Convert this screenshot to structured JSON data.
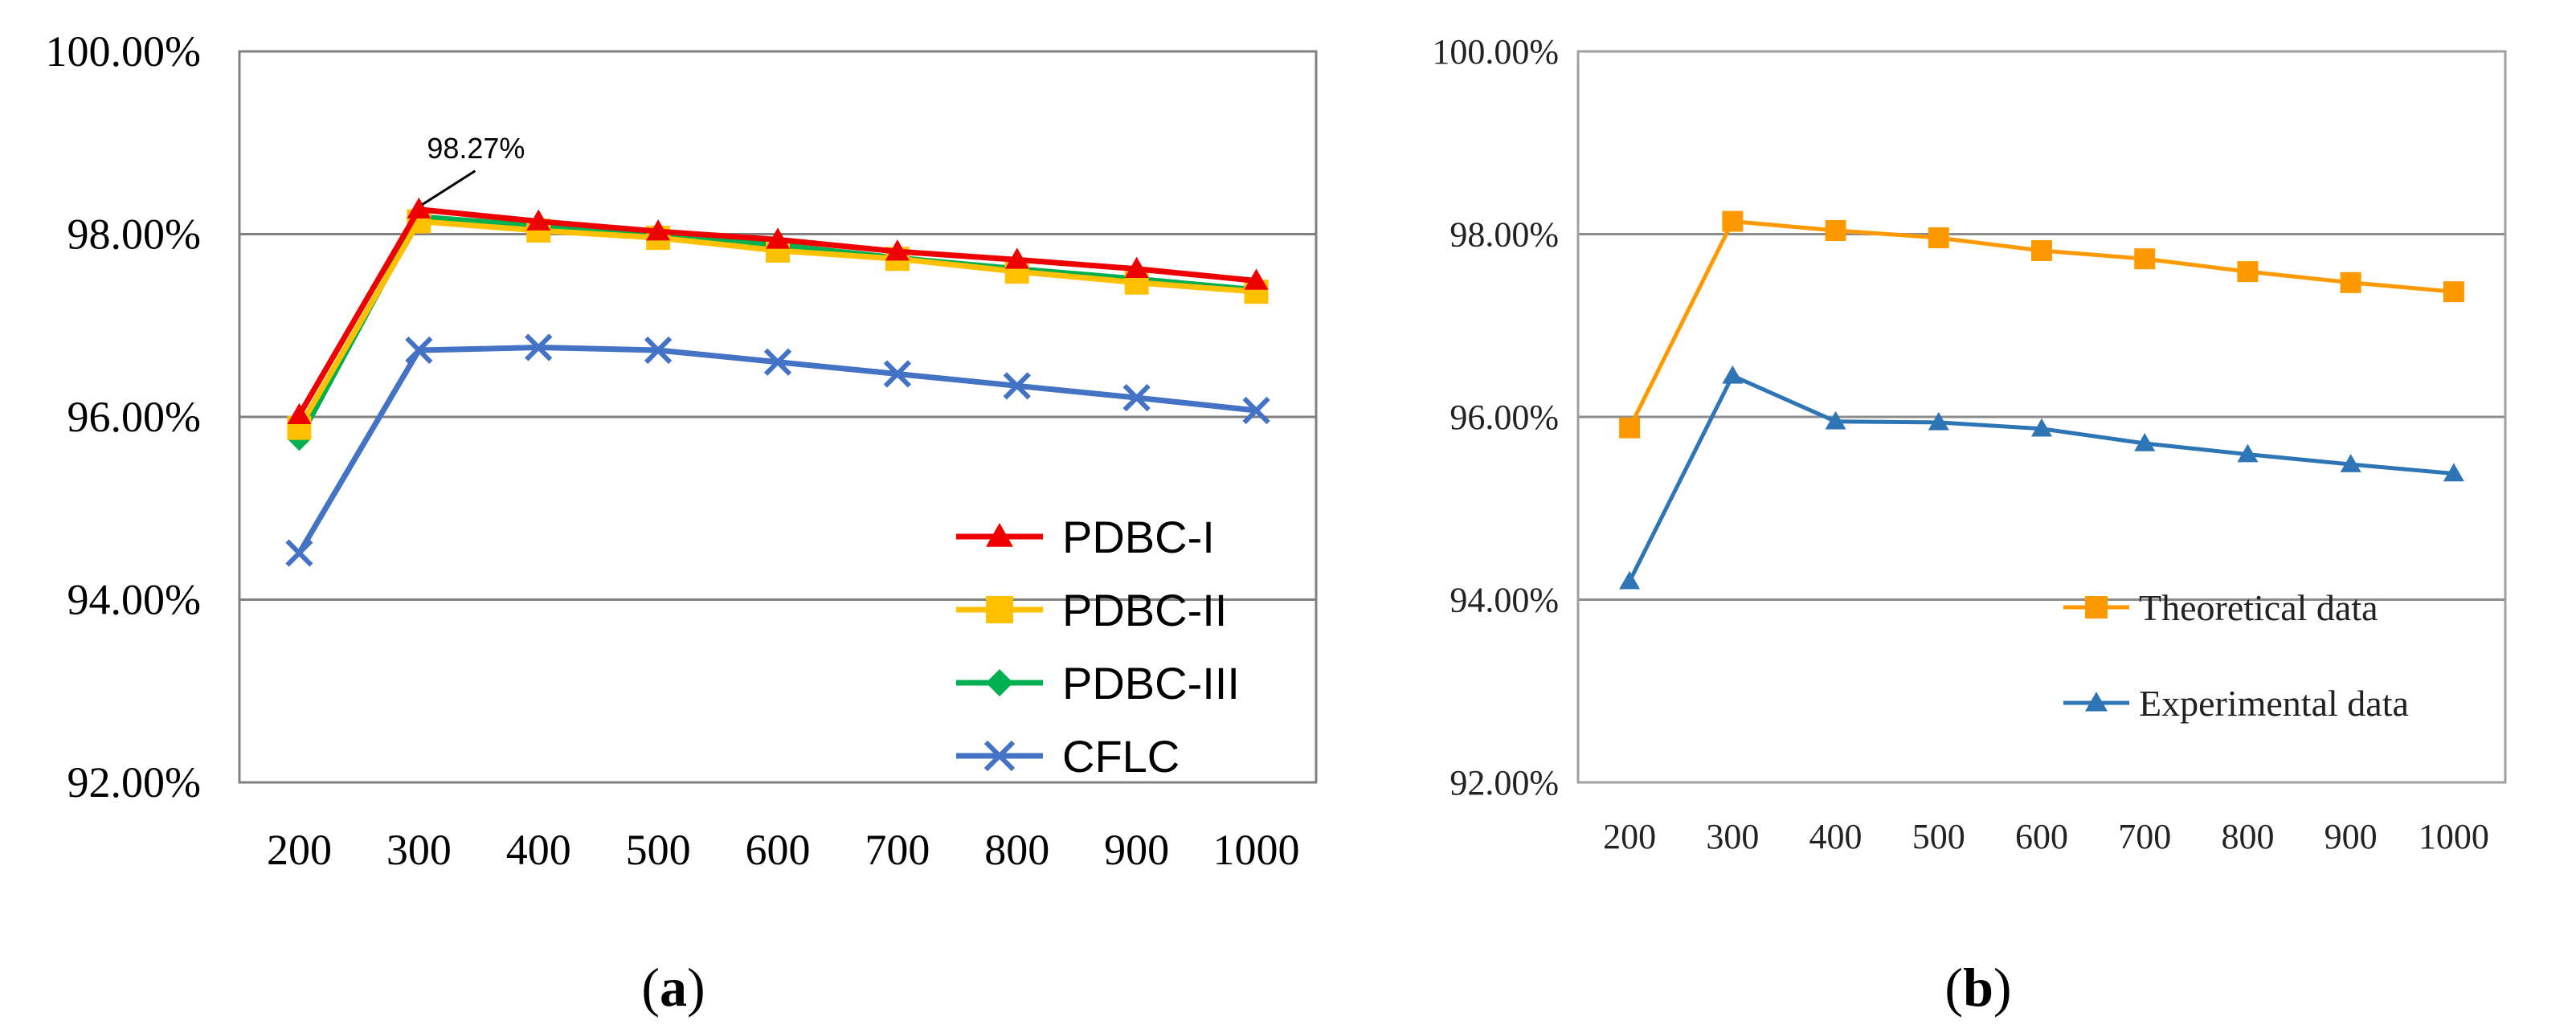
{
  "colors": {
    "red": "#ee0000",
    "yellow": "#ffc000",
    "green": "#00b050",
    "blue": "#4472c4",
    "orange": "#ff9900",
    "steelblue": "#2e75b6",
    "grid": "#808080",
    "frame": "#808080"
  },
  "chart_data": [
    {
      "panel": "(a)",
      "type": "line",
      "categories": [
        "200",
        "300",
        "400",
        "500",
        "600",
        "700",
        "800",
        "900",
        "1000"
      ],
      "y_ticks": [
        "92.00%",
        "94.00%",
        "96.00%",
        "98.00%",
        "100.00%"
      ],
      "ylim": [
        92,
        100
      ],
      "grid": true,
      "legend_position": "bottom-right",
      "annotation": {
        "text": "98.27%",
        "series": "PDBC-I",
        "category": "300"
      },
      "series": [
        {
          "name": "PDBC-I",
          "marker": "triangle",
          "color": "#ee0000",
          "values": [
            96.02,
            98.27,
            98.14,
            98.03,
            97.94,
            97.81,
            97.72,
            97.62,
            97.49
          ]
        },
        {
          "name": "PDBC-II",
          "marker": "square",
          "color": "#ffc000",
          "values": [
            95.88,
            98.14,
            98.04,
            97.96,
            97.82,
            97.73,
            97.59,
            97.47,
            97.37
          ]
        },
        {
          "name": "PDBC-III",
          "marker": "diamond",
          "color": "#00b050",
          "values": [
            95.76,
            98.19,
            98.09,
            98.0,
            97.88,
            97.74,
            97.62,
            97.51,
            97.39
          ]
        },
        {
          "name": "CFLC",
          "marker": "x",
          "color": "#4472c4",
          "values": [
            94.51,
            96.73,
            96.76,
            96.73,
            96.6,
            96.47,
            96.34,
            96.21,
            96.07
          ]
        }
      ]
    },
    {
      "panel": "(b)",
      "type": "line",
      "categories": [
        "200",
        "300",
        "400",
        "500",
        "600",
        "700",
        "800",
        "900",
        "1000"
      ],
      "y_ticks": [
        "92.00%",
        "94.00%",
        "96.00%",
        "98.00%",
        "100.00%"
      ],
      "ylim": [
        92,
        100
      ],
      "grid": true,
      "legend_position": "bottom-right",
      "series": [
        {
          "name": "Theoretical data",
          "marker": "square",
          "color": "#ff9900",
          "values": [
            95.88,
            98.14,
            98.04,
            97.96,
            97.82,
            97.73,
            97.59,
            97.47,
            97.37
          ]
        },
        {
          "name": "Experimental data",
          "marker": "triangle",
          "color": "#2e75b6",
          "values": [
            94.2,
            96.45,
            95.95,
            95.94,
            95.87,
            95.71,
            95.59,
            95.48,
            95.38
          ]
        }
      ]
    }
  ],
  "labels": {
    "a": "a",
    "b": "b"
  }
}
